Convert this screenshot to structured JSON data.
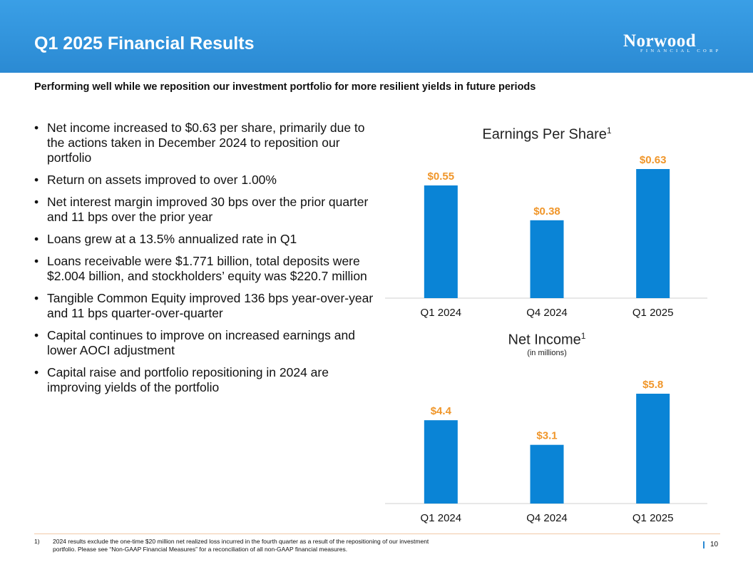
{
  "header": {
    "title": "Q1 2025 Financial Results",
    "logo_word": "Norwood",
    "logo_sub": "FINANCIAL CORP"
  },
  "subtitle": "Performing well while we reposition our investment portfolio for more resilient yields in future periods",
  "bullets": [
    "Net income increased to $0.63 per share, primarily due to the actions taken in December 2024 to reposition our portfolio",
    "Return on assets improved to over 1.00%",
    "Net interest margin improved 30 bps over the prior quarter and 11 bps over the prior year",
    "Loans grew at a 13.5% annualized rate in Q1",
    "Loans receivable were $1.771 billion, total deposits were $2.004 billion, and stockholders’ equity was $220.7 million",
    "Tangible Common Equity improved 136 bps year-over-year and 11 bps quarter-over-quarter",
    "Capital continues to improve on increased earnings and lower AOCI adjustment",
    "Capital raise and portfolio repositioning in 2024 are improving yields of the portfolio"
  ],
  "chart_data": [
    {
      "type": "bar",
      "title": "Earnings Per Share",
      "title_sup": "1",
      "subtitle": "",
      "categories": [
        "Q1 2024",
        "Q4 2024",
        "Q1 2025"
      ],
      "values": [
        0.55,
        0.38,
        0.63
      ],
      "labels": [
        "$0.55",
        "$0.38",
        "$0.63"
      ],
      "ylim": [
        0,
        0.63
      ],
      "xlabel": "",
      "ylabel": ""
    },
    {
      "type": "bar",
      "title": "Net Income",
      "title_sup": "1",
      "subtitle": "(in millions)",
      "categories": [
        "Q1 2024",
        "Q4 2024",
        "Q1 2025"
      ],
      "values": [
        4.4,
        3.1,
        5.8
      ],
      "labels": [
        "$4.4",
        "$3.1",
        "$5.8"
      ],
      "ylim": [
        0,
        5.8
      ],
      "xlabel": "",
      "ylabel": ""
    }
  ],
  "colors": {
    "header": "#2b8ad3",
    "bar": "#0a84d6",
    "data_label": "#f0962a",
    "axis": "#d9d9d9"
  },
  "footnote": {
    "number": "1)",
    "text": "2024 results exclude the one-time $20 million net realized loss incurred in the fourth quarter as a result of the repositioning of our investment portfolio. Please see “Non-GAAP Financial Measures” for a reconciliation of all non-GAAP financial measures."
  },
  "page_number": "10"
}
